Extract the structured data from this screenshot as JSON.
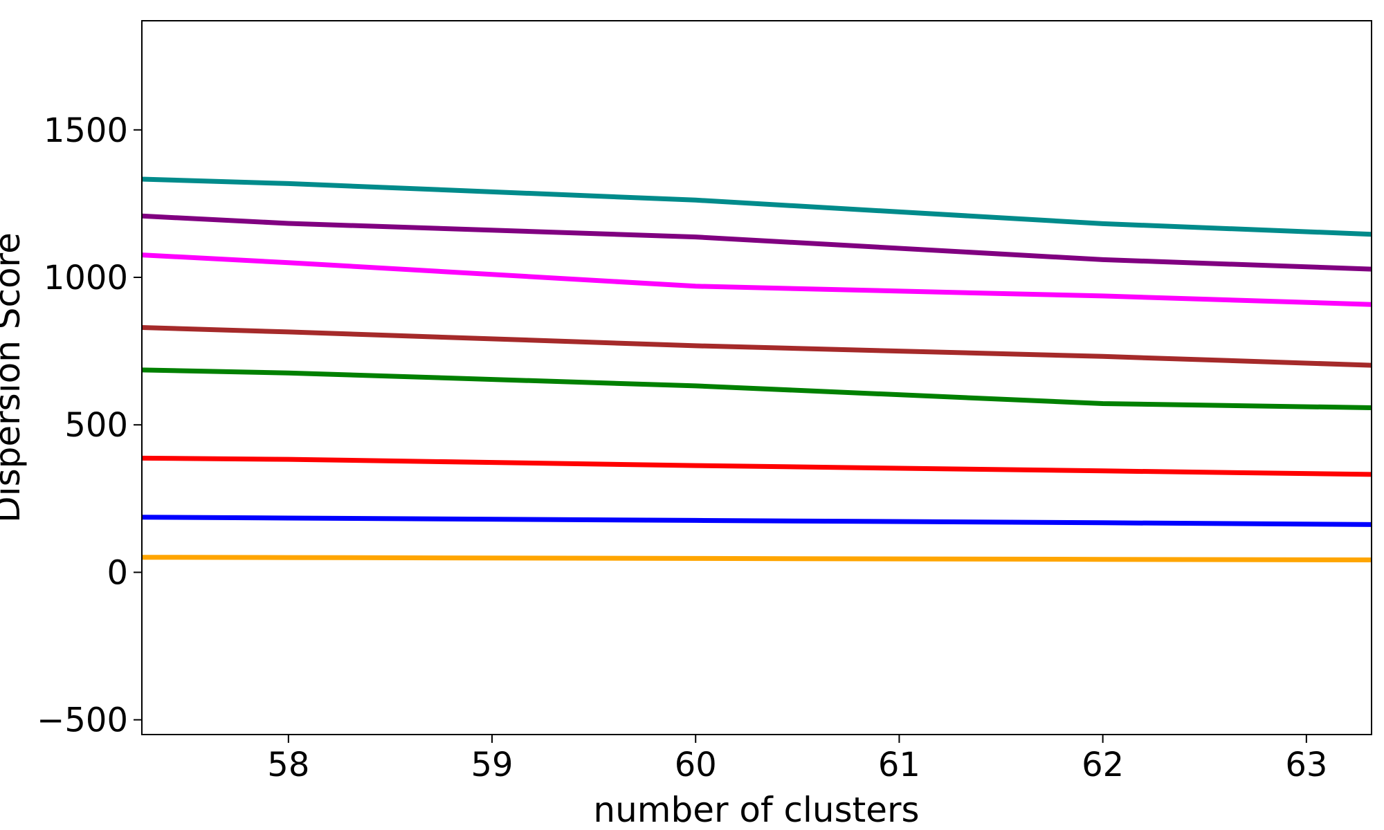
{
  "chart_data": {
    "type": "line",
    "title": "",
    "xlabel": "number of clusters",
    "ylabel": "Dispersion Score",
    "xlim": [
      57.28,
      63.32
    ],
    "ylim": [
      -550,
      1870
    ],
    "xticks": [
      58,
      59,
      60,
      61,
      62,
      63
    ],
    "yticks": [
      -500,
      0,
      500,
      1000,
      1500
    ],
    "ytick_labels": [
      "−500",
      "0",
      "500",
      "1000",
      "1500"
    ],
    "grid": false,
    "x": [
      57.28,
      58,
      60,
      62,
      63.32
    ],
    "series": [
      {
        "color": "#008b8b",
        "values": [
          1333,
          1318,
          1262,
          1182,
          1146
        ]
      },
      {
        "color": "#800080",
        "values": [
          1208,
          1183,
          1137,
          1060,
          1028
        ]
      },
      {
        "color": "#ff00ff",
        "values": [
          1076,
          1050,
          970,
          937,
          908
        ]
      },
      {
        "color": "#a52a2a",
        "values": [
          830,
          815,
          768,
          732,
          702
        ]
      },
      {
        "color": "#008000",
        "values": [
          686,
          676,
          632,
          572,
          558
        ]
      },
      {
        "color": "#ff0000",
        "values": [
          387,
          383,
          362,
          344,
          332
        ]
      },
      {
        "color": "#0000ff",
        "values": [
          187,
          184,
          176,
          168,
          162
        ]
      },
      {
        "color": "#ffa500",
        "values": [
          51,
          50,
          47,
          44,
          42
        ]
      }
    ]
  }
}
